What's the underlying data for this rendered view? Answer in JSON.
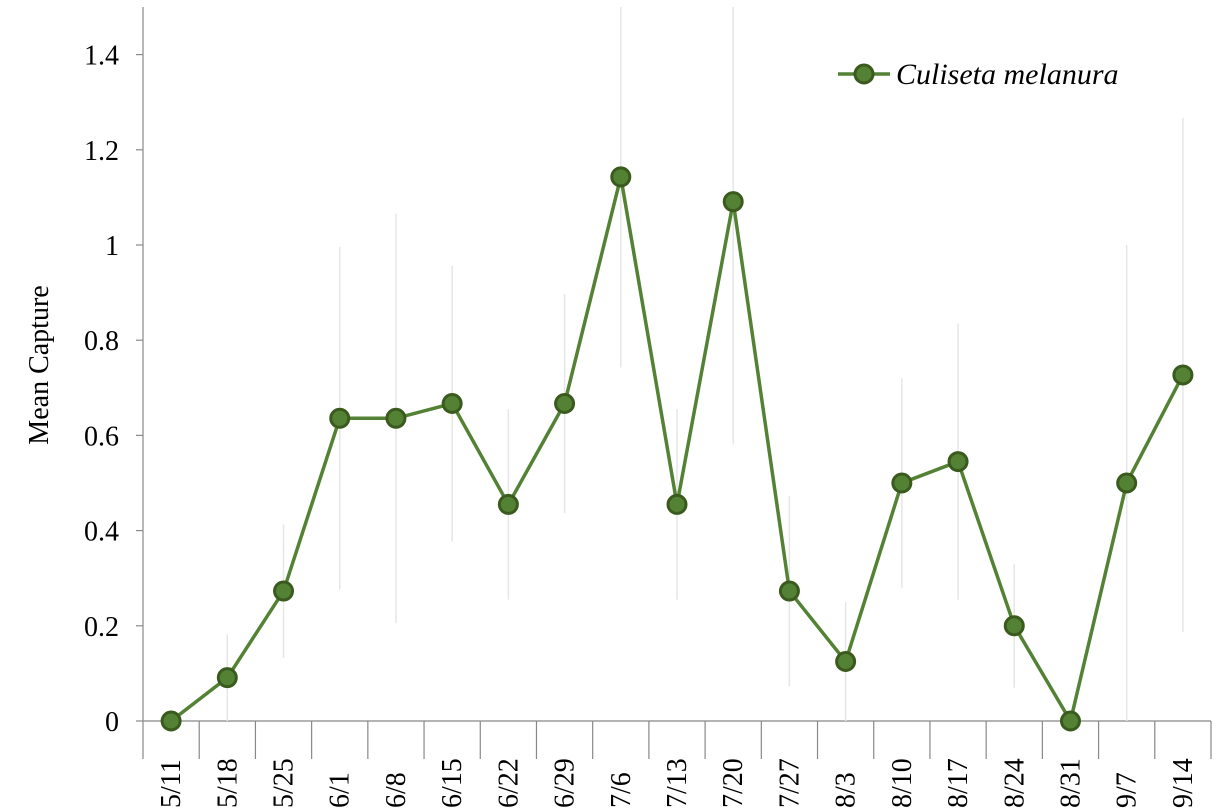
{
  "chart_data": {
    "type": "line",
    "y_label": "Mean Capture",
    "categories": [
      "5/11",
      "5/18",
      "5/25",
      "6/1",
      "6/8",
      "6/15",
      "6/22",
      "6/29",
      "7/6",
      "7/13",
      "7/20",
      "7/27",
      "8/3",
      "8/10",
      "8/17",
      "8/24",
      "8/31",
      "9/7",
      "9/14"
    ],
    "series": [
      {
        "name": "Culiseta melanura",
        "color": "#548235",
        "values": [
          0,
          0.091,
          0.273,
          0.636,
          0.636,
          0.667,
          0.455,
          0.667,
          1.143,
          0.455,
          1.091,
          0.273,
          0.125,
          0.5,
          0.545,
          0.2,
          0,
          0.5,
          0.727
        ],
        "errors": [
          0,
          0.091,
          0.14,
          0.36,
          0.43,
          0.29,
          0.2,
          0.23,
          0.4,
          0.2,
          0.51,
          0.2,
          0.125,
          0.22,
          0.29,
          0.13,
          0,
          0.5,
          0.54
        ]
      }
    ],
    "ylim": [
      0,
      1.5
    ],
    "yticks": [
      0,
      0.2,
      0.4,
      0.6,
      0.8,
      1,
      1.2,
      1.4
    ],
    "legend": "top-right"
  }
}
